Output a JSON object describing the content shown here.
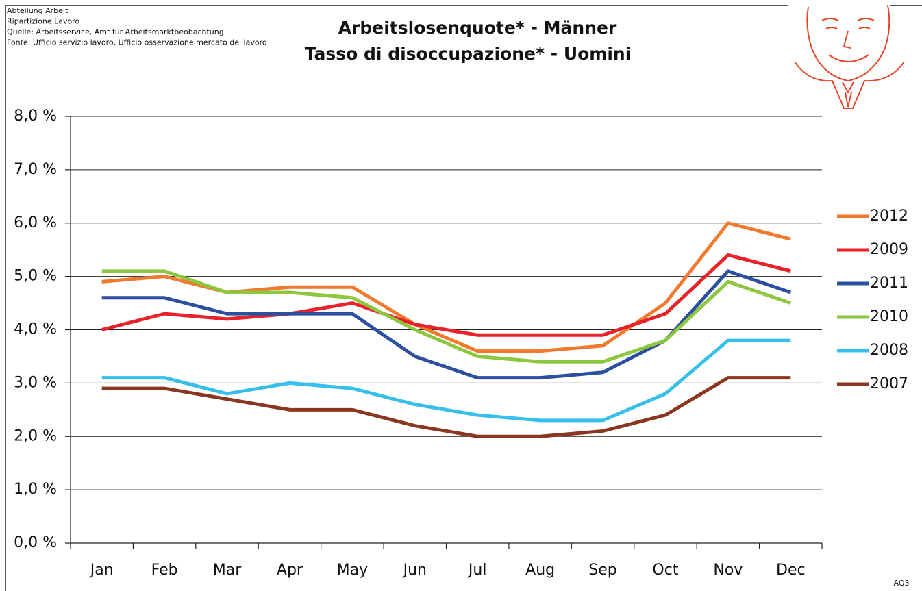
{
  "chart_data": {
    "type": "line",
    "notes": [
      "Abteilung Arbeit",
      "Ripartizione Lavoro",
      "Quelle: Arbeitsservice, Amt für Arbeitsmarktbeobachtung",
      "Fonte: Ufficio servizio lavoro, Ufficio osservazione mercato del lavoro"
    ],
    "title": "Arbeitslosenquote* - Männer",
    "subtitle": "Tasso di disoccupazione* - Uomini",
    "footnote": "AQ3",
    "categories": [
      "Jan",
      "Feb",
      "Mar",
      "Apr",
      "May",
      "Jun",
      "Jul",
      "Aug",
      "Sep",
      "Oct",
      "Nov",
      "Dec"
    ],
    "series": [
      {
        "name": "2012",
        "color": "#f07a2e",
        "values": [
          4.9,
          5.0,
          4.7,
          4.8,
          4.8,
          4.1,
          3.6,
          3.6,
          3.7,
          4.5,
          6.0,
          5.7
        ]
      },
      {
        "name": "2009",
        "color": "#e82229",
        "values": [
          4.0,
          4.3,
          4.2,
          4.3,
          4.5,
          4.1,
          3.9,
          3.9,
          3.9,
          4.3,
          5.4,
          5.1
        ]
      },
      {
        "name": "2011",
        "color": "#2c4f9f",
        "values": [
          4.6,
          4.6,
          4.3,
          4.3,
          4.3,
          3.5,
          3.1,
          3.1,
          3.2,
          3.8,
          5.1,
          4.7
        ]
      },
      {
        "name": "2010",
        "color": "#8dc63f",
        "values": [
          5.1,
          5.1,
          4.7,
          4.7,
          4.6,
          4.0,
          3.5,
          3.4,
          3.4,
          3.8,
          4.9,
          4.5
        ]
      },
      {
        "name": "2008",
        "color": "#35bfea",
        "values": [
          3.1,
          3.1,
          2.8,
          3.0,
          2.9,
          2.6,
          2.4,
          2.3,
          2.3,
          2.8,
          3.8,
          3.8
        ]
      },
      {
        "name": "2007",
        "color": "#8b3620",
        "values": [
          2.9,
          2.9,
          2.7,
          2.5,
          2.5,
          2.2,
          2.0,
          2.0,
          2.1,
          2.4,
          3.1,
          3.1
        ]
      }
    ],
    "ylim": [
      0,
      8
    ],
    "yticks": [
      {
        "value": 0,
        "label": "0,0 %"
      },
      {
        "value": 1,
        "label": "1,0 %"
      },
      {
        "value": 2,
        "label": "2,0 %"
      },
      {
        "value": 3,
        "label": "3,0 %"
      },
      {
        "value": 4,
        "label": "4,0 %"
      },
      {
        "value": 5,
        "label": "5,0 %"
      },
      {
        "value": 6,
        "label": "6,0 %"
      },
      {
        "value": 7,
        "label": "7,0 %"
      },
      {
        "value": 8,
        "label": "8,0 %"
      }
    ],
    "grid": true,
    "legend": "right"
  }
}
